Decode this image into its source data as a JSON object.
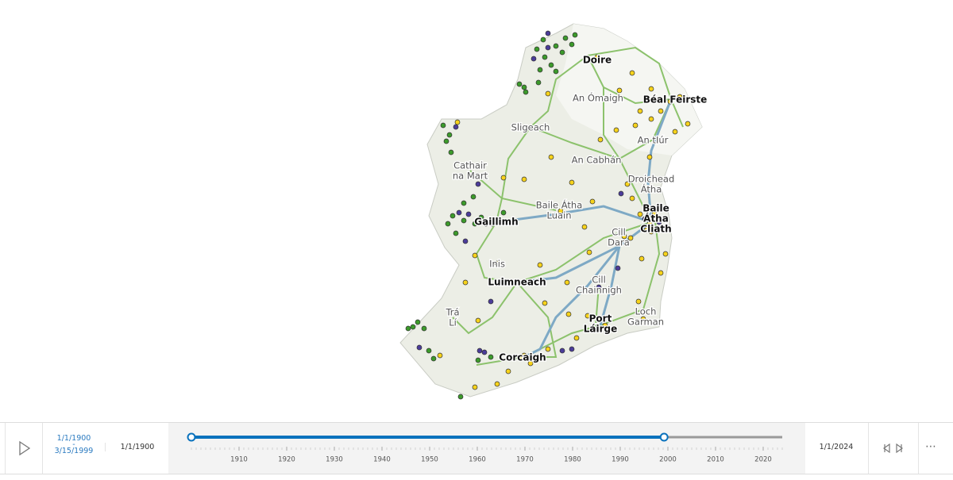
{
  "map": {
    "labels": [
      {
        "lines": [
          "Doire"
        ],
        "major": true
      },
      {
        "lines": [
          "An Ómaigh"
        ],
        "major": false
      },
      {
        "lines": [
          "Béal Feirste"
        ],
        "major": true
      },
      {
        "lines": [
          "Sligeach"
        ],
        "major": false
      },
      {
        "lines": [
          "An tIúr"
        ],
        "major": false
      },
      {
        "lines": [
          "An Cabhán"
        ],
        "major": false
      },
      {
        "lines": [
          "Cathair",
          "na Mart"
        ],
        "major": false
      },
      {
        "lines": [
          "Droichead",
          "Átha"
        ],
        "major": false
      },
      {
        "lines": [
          "Baile Átha",
          "Luain"
        ],
        "major": false
      },
      {
        "lines": [
          "Gaillimh"
        ],
        "major": true
      },
      {
        "lines": [
          "Baile",
          "Átha",
          "Cliath"
        ],
        "major": true
      },
      {
        "lines": [
          "Cill",
          "Dara"
        ],
        "major": false
      },
      {
        "lines": [
          "Inis"
        ],
        "major": false
      },
      {
        "lines": [
          "Luimneach"
        ],
        "major": true
      },
      {
        "lines": [
          "Cill",
          "Chainnigh"
        ],
        "major": false
      },
      {
        "lines": [
          "Trá",
          "Lí"
        ],
        "major": false
      },
      {
        "lines": [
          "Port",
          "Láirge"
        ],
        "major": true
      },
      {
        "lines": [
          "Loch",
          "Garman"
        ],
        "major": false
      },
      {
        "lines": [
          "Corcaigh"
        ],
        "major": true
      }
    ]
  },
  "time_slider": {
    "range_start": "1/1/1900",
    "range_separator": "-",
    "range_end": "3/15/1999",
    "min_label": "1/1/1900",
    "max_label": "1/1/2024",
    "ticks": [
      1910,
      1920,
      1930,
      1940,
      1950,
      1960,
      1970,
      1980,
      1990,
      2000,
      2010,
      2020
    ]
  }
}
